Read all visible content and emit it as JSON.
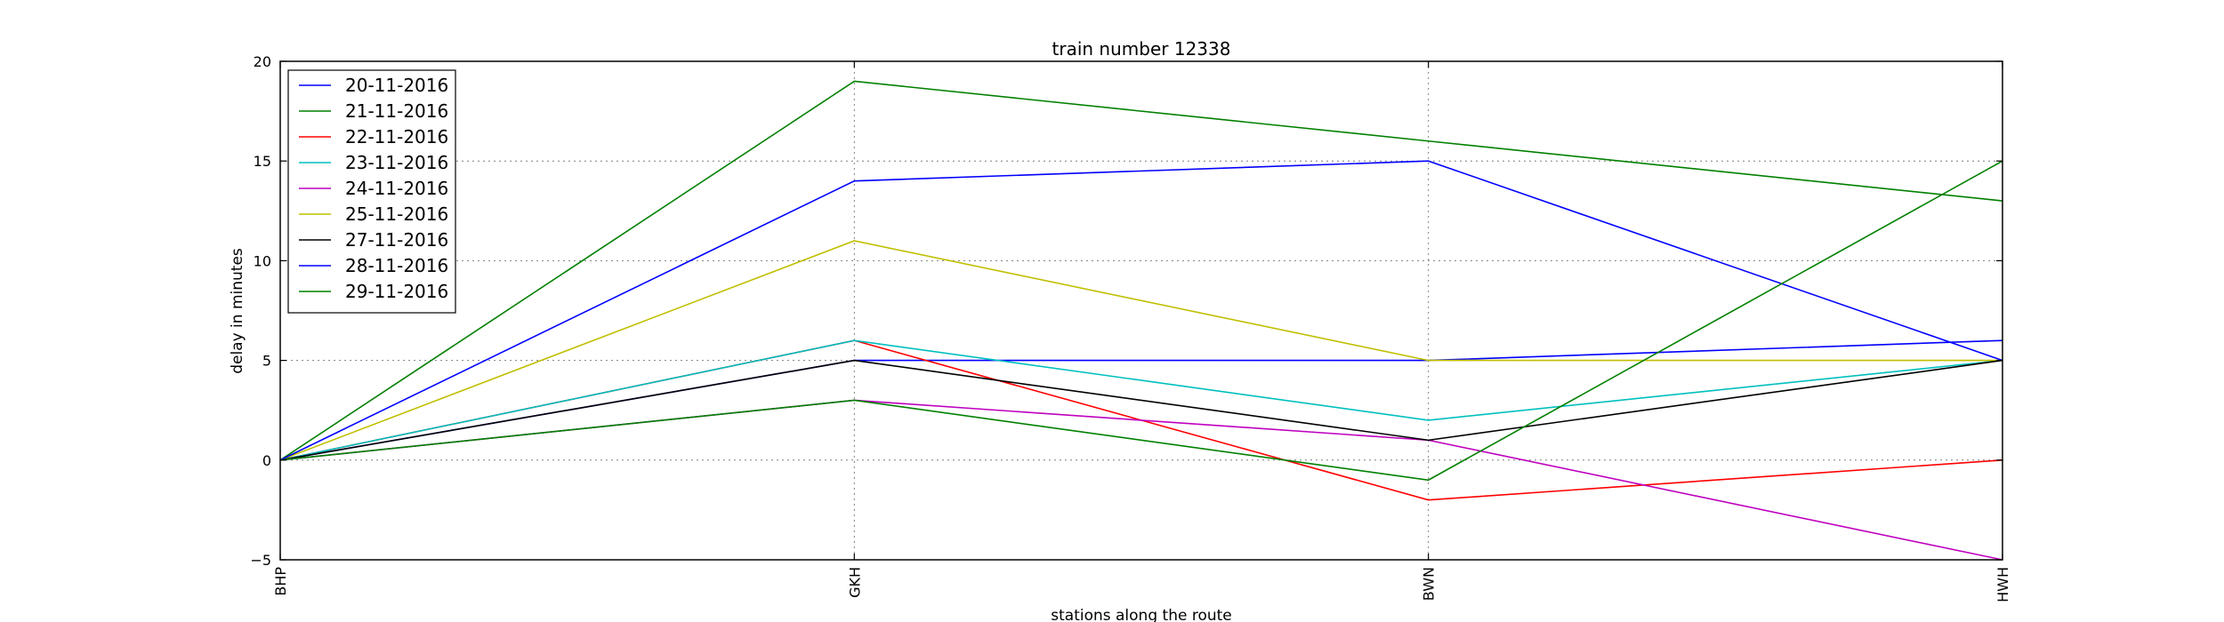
{
  "chart_data": {
    "type": "line",
    "title": "train number 12338",
    "xlabel": "stations along the route",
    "ylabel": "delay in minutes",
    "categories": [
      "BHP",
      "GKH",
      "BWN",
      "HWH"
    ],
    "ylim": [
      -5,
      20
    ],
    "yticks": [
      -5,
      0,
      5,
      10,
      15,
      20
    ],
    "grid": true,
    "legend_position": "top-left",
    "series": [
      {
        "name": "20-11-2016",
        "color": "#0000ff",
        "values": [
          0,
          5,
          5,
          6
        ]
      },
      {
        "name": "21-11-2016",
        "color": "#008000",
        "values": [
          0,
          19,
          16,
          13
        ]
      },
      {
        "name": "22-11-2016",
        "color": "#ff0000",
        "values": [
          0,
          6,
          -2,
          0
        ]
      },
      {
        "name": "23-11-2016",
        "color": "#00bfbf",
        "values": [
          0,
          6,
          2,
          5
        ]
      },
      {
        "name": "24-11-2016",
        "color": "#bf00bf",
        "values": [
          0,
          3,
          1,
          -5
        ]
      },
      {
        "name": "25-11-2016",
        "color": "#bfbf00",
        "values": [
          0,
          11,
          5,
          5
        ]
      },
      {
        "name": "27-11-2016",
        "color": "#000000",
        "values": [
          0,
          5,
          1,
          5
        ]
      },
      {
        "name": "28-11-2016",
        "color": "#0000ff",
        "values": [
          0,
          14,
          15,
          5
        ]
      },
      {
        "name": "29-11-2016",
        "color": "#008000",
        "values": [
          0,
          3,
          -1,
          15
        ]
      }
    ]
  }
}
